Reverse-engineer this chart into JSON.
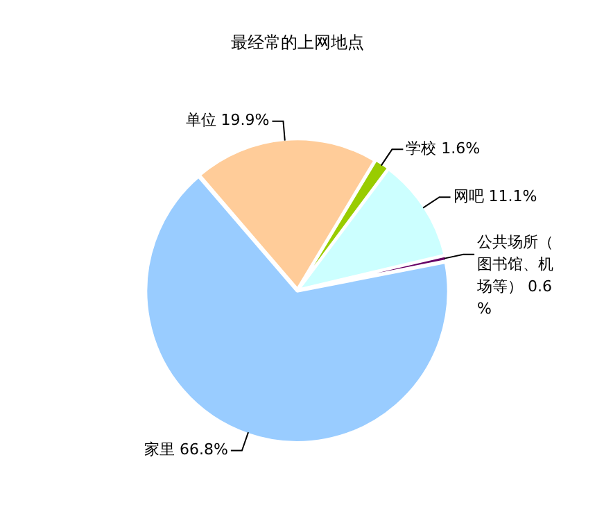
{
  "chart_data": {
    "type": "pie",
    "title": "最经常的上网地点",
    "categories": [
      "学校",
      "网吧",
      "公共场所（图书馆、机场等）",
      "家里",
      "单位"
    ],
    "values": [
      1.6,
      11.1,
      0.6,
      66.8,
      19.9
    ],
    "value_labels": [
      "1.6%",
      "11.1%",
      "0.6%",
      "66.8%",
      "19.9%"
    ],
    "colors": [
      "#99cc00",
      "#ccffff",
      "#660066",
      "#99ccff",
      "#ffcc99"
    ],
    "legend": false
  }
}
